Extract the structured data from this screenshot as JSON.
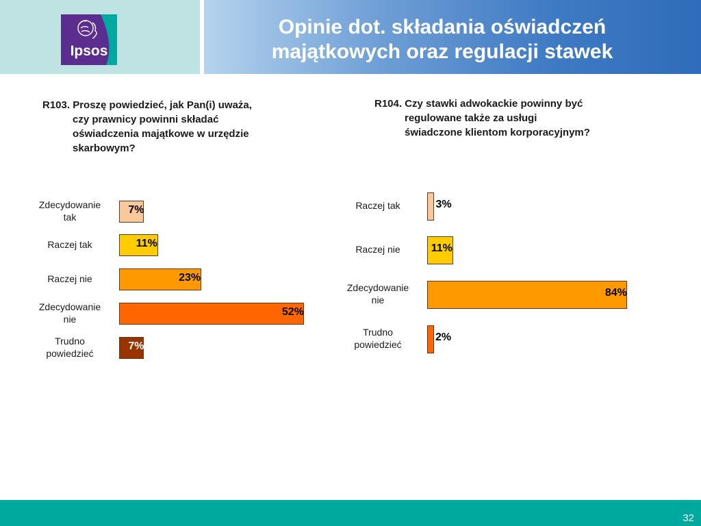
{
  "header": {
    "title_line1": "Opinie dot. składania oświadczeń",
    "title_line2": "majątkowych oraz regulacji stawek",
    "logo_text": "Ipsos"
  },
  "colors": {
    "logo_text_bg": "#5b2d8f",
    "logo_accent": "#00a99d",
    "footer": "#00a99d"
  },
  "chart_data": [
    {
      "type": "bar",
      "orientation": "horizontal",
      "question_line1": "R103. Proszę powiedzieć, jak Pan(i) uważa,",
      "question_cont": [
        "czy prawnicy powinni składać",
        "oświadczenia majątkowe w urzędzie",
        "skarbowym?"
      ],
      "categories": [
        [
          "Zdecydowanie",
          "tak"
        ],
        [
          "Raczej tak"
        ],
        [
          "Raczej nie"
        ],
        [
          "Zdecydowanie",
          "nie"
        ],
        [
          "Trudno",
          "powiedzieć"
        ]
      ],
      "values": [
        7,
        11,
        23,
        52,
        7
      ],
      "labels": [
        "7%",
        "11%",
        "23%",
        "52%",
        "7%"
      ],
      "colors": [
        "#f9c89b",
        "#ffcc00",
        "#ff9900",
        "#ff6600",
        "#993300"
      ]
    },
    {
      "type": "bar",
      "orientation": "horizontal",
      "question_line1": "R104. Czy stawki adwokackie powinny być",
      "question_cont": [
        "regulowane także za usługi",
        "świadczone klientom korporacyjnym?"
      ],
      "categories": [
        [
          "Raczej tak"
        ],
        [
          "Raczej nie"
        ],
        [
          "Zdecydowanie",
          "nie"
        ],
        [
          "Trudno",
          "powiedzieć"
        ]
      ],
      "values": [
        3,
        11,
        84,
        2
      ],
      "labels": [
        "3%",
        "11%",
        "84%",
        "2%"
      ],
      "colors": [
        "#f9c89b",
        "#ffcc00",
        "#ff9900",
        "#ff6600"
      ]
    }
  ],
  "footer": {
    "page_number": "32"
  }
}
